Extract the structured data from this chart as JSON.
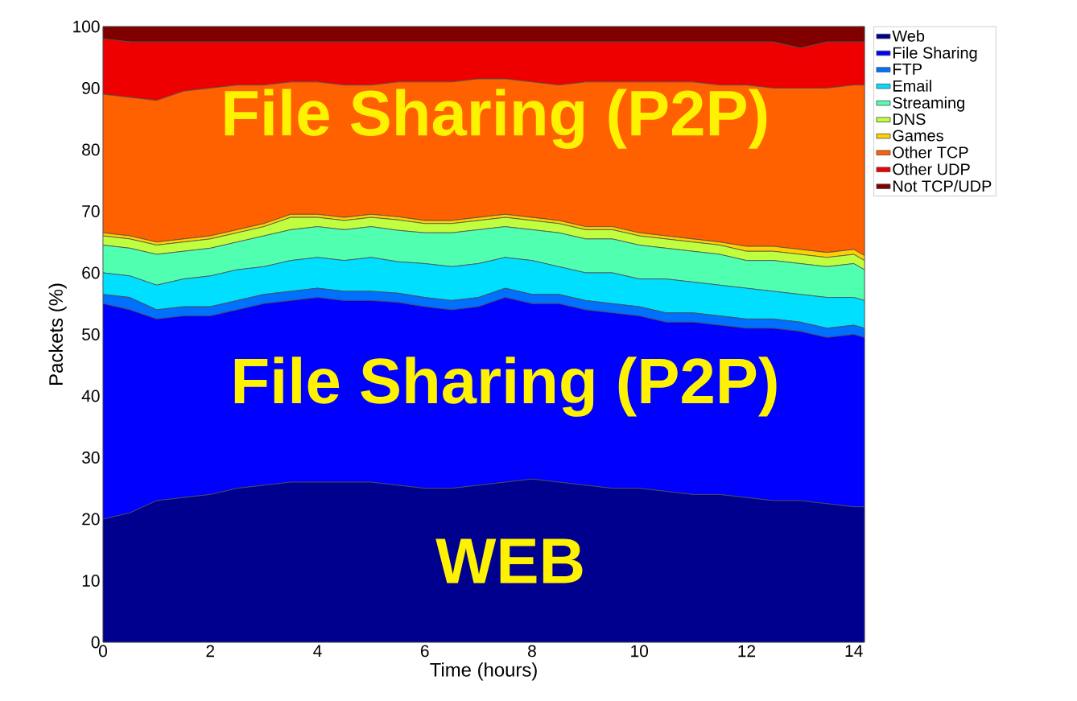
{
  "chart_data": {
    "type": "area",
    "stacked": true,
    "xlabel": "Time (hours)",
    "ylabel": "Packets (%)",
    "x": [
      0,
      0.5,
      1,
      1.5,
      2,
      2.5,
      3,
      3.5,
      4,
      4.5,
      5,
      5.5,
      6,
      6.5,
      7,
      7.5,
      8,
      8.5,
      9,
      9.5,
      10,
      10.5,
      11,
      11.5,
      12,
      12.5,
      13,
      13.5,
      14,
      14.2
    ],
    "xlim": [
      0,
      14.2
    ],
    "ylim": [
      0,
      100
    ],
    "xticks": [
      0,
      2,
      4,
      6,
      8,
      10,
      12,
      14
    ],
    "yticks": [
      0,
      10,
      20,
      30,
      40,
      50,
      60,
      70,
      80,
      90,
      100
    ],
    "legend": "top right",
    "series": [
      {
        "name": "Web",
        "color": "#00008f",
        "values": [
          20,
          21,
          23,
          23.5,
          24,
          25,
          25.5,
          26,
          26,
          26,
          26,
          25.5,
          25,
          25,
          25.5,
          26,
          26.5,
          26,
          25.5,
          25,
          25,
          24.5,
          24,
          24,
          23.5,
          23,
          23,
          22.5,
          22,
          22
        ]
      },
      {
        "name": "File Sharing",
        "color": "#0000ff",
        "values": [
          35,
          33,
          29.5,
          29.5,
          29,
          29,
          29.5,
          29.5,
          30,
          29.5,
          29.5,
          29.7,
          29.5,
          29,
          29,
          30,
          28.5,
          29,
          28.5,
          28.5,
          28,
          27.5,
          28,
          27.5,
          27.5,
          28,
          27.5,
          27,
          28,
          27.5
        ]
      },
      {
        "name": "FTP",
        "color": "#0070ff",
        "values": [
          1.5,
          2,
          1.5,
          1.5,
          1.5,
          1.5,
          1.5,
          1.5,
          1.5,
          1.5,
          1.5,
          1.5,
          1.5,
          1.5,
          1.5,
          1.5,
          1.5,
          1.5,
          1.5,
          1.5,
          1.5,
          1.5,
          1.5,
          1.5,
          1.5,
          1.5,
          1.5,
          1.5,
          1.5,
          1.5
        ]
      },
      {
        "name": "Email",
        "color": "#00dfff",
        "values": [
          3.5,
          3.5,
          4,
          4.5,
          5,
          5,
          4.5,
          5,
          5,
          5,
          5.5,
          5.1,
          5.5,
          5.5,
          5.5,
          5,
          5.5,
          4.5,
          4.5,
          5,
          4.5,
          5.5,
          5,
          5,
          5,
          4.5,
          4.5,
          5,
          4.5,
          4.5
        ]
      },
      {
        "name": "Streaming",
        "color": "#50ffaf",
        "values": [
          4.5,
          4.5,
          5,
          4.5,
          4.5,
          4.5,
          5,
          5,
          5,
          5,
          5,
          5.1,
          5,
          5.5,
          5.5,
          5,
          5,
          5.5,
          5.5,
          5.5,
          5.5,
          5,
          5,
          5,
          4.5,
          5,
          5,
          5,
          5.5,
          5
        ]
      },
      {
        "name": "DNS",
        "color": "#bfff3f",
        "values": [
          1.5,
          1.5,
          1.5,
          1.5,
          1.5,
          1.5,
          1.5,
          2,
          1.5,
          1.5,
          1.5,
          1.7,
          1.5,
          1.5,
          1.5,
          1.5,
          1.5,
          1.5,
          1.5,
          1.5,
          1.5,
          1.5,
          1.5,
          1.5,
          1.5,
          1.5,
          1.5,
          1.5,
          1.5,
          1.5
        ]
      },
      {
        "name": "Games",
        "color": "#ffcf00",
        "values": [
          0.5,
          0.5,
          0.5,
          0.5,
          0.5,
          0.5,
          0.5,
          0.5,
          0.5,
          0.5,
          0.5,
          0.5,
          0.5,
          0.5,
          0.5,
          0.5,
          0.5,
          0.5,
          0.5,
          0.5,
          0.5,
          0.5,
          0.5,
          0.5,
          0.8,
          0.8,
          0.8,
          0.8,
          0.8,
          0.8
        ]
      },
      {
        "name": "Other TCP",
        "color": "#ff6000",
        "values": [
          22.5,
          22.5,
          23,
          24,
          24,
          23.5,
          22.5,
          21.5,
          21.5,
          21.5,
          21,
          21.9,
          22.5,
          22.5,
          22.5,
          22,
          22,
          22,
          23.5,
          23.5,
          24.5,
          25,
          25.5,
          25.5,
          26.2,
          25.7,
          26.2,
          26.7,
          26.7,
          27.7
        ]
      },
      {
        "name": "Other UDP",
        "color": "#ef0000",
        "values": [
          9,
          9,
          9.5,
          8,
          7.5,
          7,
          7,
          6.5,
          6.5,
          7,
          7,
          6.5,
          6.5,
          6.5,
          6,
          6,
          6.5,
          7,
          6.5,
          6.5,
          6.5,
          6.5,
          6.5,
          7,
          7,
          7.5,
          6.5,
          7.5,
          7,
          7
        ]
      },
      {
        "name": "Not TCP/UDP",
        "color": "#800000",
        "values": [
          2,
          2.5,
          2.5,
          2.5,
          2.5,
          2.5,
          2.5,
          2.5,
          2.5,
          2.5,
          2.5,
          2.5,
          2.5,
          2.5,
          2.5,
          2.5,
          2.5,
          2.5,
          2.5,
          2.5,
          2.5,
          2.5,
          2.5,
          2.5,
          2.5,
          2.5,
          3.5,
          2.5,
          2.5,
          2.5
        ]
      }
    ],
    "annotations": [
      "File Sharing (P2P)",
      "File Sharing (P2P)",
      "WEB"
    ]
  }
}
